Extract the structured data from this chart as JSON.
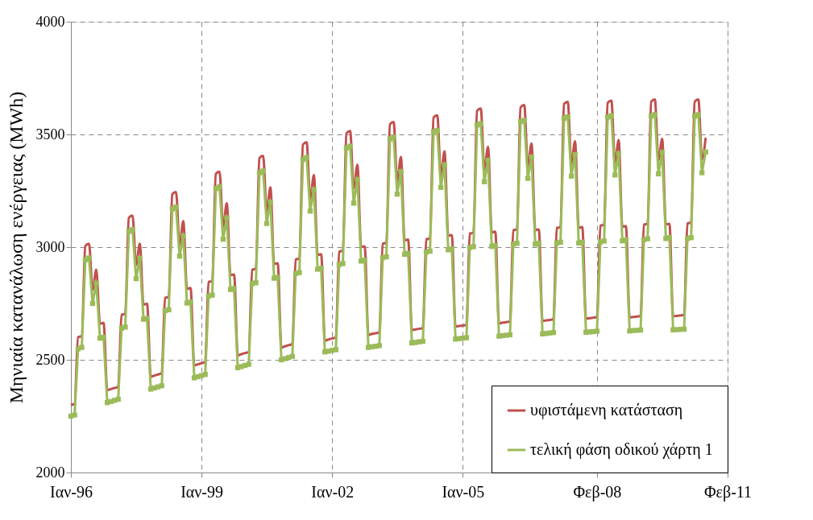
{
  "chart_data": {
    "type": "line",
    "ylabel": "Μηνιαία κατανάλωση ενέργειας  (MWh)",
    "x": [
      "1996-01",
      "1996-02",
      "1996-03",
      "1996-04",
      "1996-05",
      "1996-06",
      "1996-07",
      "1996-08",
      "1996-09",
      "1996-10",
      "1996-11",
      "1996-12",
      "1997-01",
      "1997-02",
      "1997-03",
      "1997-04",
      "1997-05",
      "1997-06",
      "1997-07",
      "1997-08",
      "1997-09",
      "1997-10",
      "1997-11",
      "1997-12",
      "1998-01",
      "1998-02",
      "1998-03",
      "1998-04",
      "1998-05",
      "1998-06",
      "1998-07",
      "1998-08",
      "1998-09",
      "1998-10",
      "1998-11",
      "1998-12",
      "1999-01",
      "1999-02",
      "1999-03",
      "1999-04",
      "1999-05",
      "1999-06",
      "1999-07",
      "1999-08",
      "1999-09",
      "1999-10",
      "1999-11",
      "1999-12",
      "2000-01",
      "2000-02",
      "2000-03",
      "2000-04",
      "2000-05",
      "2000-06",
      "2000-07",
      "2000-08",
      "2000-09",
      "2000-10",
      "2000-11",
      "2000-12",
      "2001-01",
      "2001-02",
      "2001-03",
      "2001-04",
      "2001-05",
      "2001-06",
      "2001-07",
      "2001-08",
      "2001-09",
      "2001-10",
      "2001-11",
      "2001-12",
      "2002-01",
      "2002-02",
      "2002-03",
      "2002-04",
      "2002-05",
      "2002-06",
      "2002-07",
      "2002-08",
      "2002-09",
      "2002-10",
      "2002-11",
      "2002-12",
      "2003-01",
      "2003-02",
      "2003-03",
      "2003-04",
      "2003-05",
      "2003-06",
      "2003-07",
      "2003-08",
      "2003-09",
      "2003-10",
      "2003-11",
      "2003-12",
      "2004-01",
      "2004-02",
      "2004-03",
      "2004-04",
      "2004-05",
      "2004-06",
      "2004-07",
      "2004-08",
      "2004-09",
      "2004-10",
      "2004-11",
      "2004-12",
      "2005-01",
      "2005-02",
      "2005-03",
      "2005-04",
      "2005-05",
      "2005-06",
      "2005-07",
      "2005-08",
      "2005-09",
      "2005-10",
      "2005-11",
      "2005-12",
      "2006-01",
      "2006-02",
      "2006-03",
      "2006-04",
      "2006-05",
      "2006-06",
      "2006-07",
      "2006-08",
      "2006-09",
      "2006-10",
      "2006-11",
      "2006-12",
      "2007-01",
      "2007-02",
      "2007-03",
      "2007-04",
      "2007-05",
      "2007-06",
      "2007-07",
      "2007-08",
      "2007-09",
      "2007-10",
      "2007-11",
      "2007-12",
      "2008-01",
      "2008-02",
      "2008-03",
      "2008-04",
      "2008-05",
      "2008-06",
      "2008-07",
      "2008-08",
      "2008-09",
      "2008-10",
      "2008-11",
      "2008-12",
      "2009-01",
      "2009-02",
      "2009-03",
      "2009-04",
      "2009-05",
      "2009-06",
      "2009-07",
      "2009-08",
      "2009-09",
      "2009-10",
      "2009-11",
      "2009-12",
      "2010-01",
      "2010-02",
      "2010-03",
      "2010-04",
      "2010-05",
      "2010-06",
      "2010-07",
      "2010-08"
    ],
    "series": [
      {
        "name": "υφιστάμενη κατάσταση",
        "color": "#c0504d",
        "marker": "none",
        "values": [
          2300,
          2305,
          2600,
          2605,
          3005,
          3015,
          2810,
          2900,
          2660,
          2664,
          2365,
          2370,
          2375,
          2380,
          2700,
          2704,
          3130,
          3140,
          2920,
          3015,
          2745,
          2749,
          2425,
          2430,
          2435,
          2440,
          2775,
          2779,
          3235,
          3245,
          3010,
          3115,
          2815,
          2819,
          2475,
          2480,
          2485,
          2490,
          2845,
          2849,
          3325,
          3335,
          3090,
          3195,
          2875,
          2879,
          2520,
          2525,
          2530,
          2535,
          2900,
          2904,
          3395,
          3405,
          3160,
          3265,
          2925,
          2929,
          2555,
          2560,
          2565,
          2570,
          2945,
          2949,
          3455,
          3465,
          3215,
          3320,
          2965,
          2969,
          2585,
          2590,
          2595,
          2598,
          2980,
          2984,
          3505,
          3515,
          3260,
          3365,
          3000,
          3004,
          2610,
          2615,
          2618,
          2621,
          3015,
          3019,
          3545,
          3555,
          3290,
          3400,
          3030,
          3034,
          2632,
          2635,
          2638,
          2640,
          3035,
          3039,
          3575,
          3585,
          3320,
          3425,
          3050,
          3054,
          2648,
          2650,
          2652,
          2655,
          3060,
          3064,
          3605,
          3615,
          3345,
          3445,
          3065,
          3069,
          2662,
          2665,
          2667,
          2670,
          3075,
          3079,
          3620,
          3630,
          3360,
          3460,
          3075,
          3079,
          2672,
          2675,
          2677,
          2680,
          3085,
          3089,
          3635,
          3645,
          3370,
          3470,
          3085,
          3089,
          2682,
          2685,
          2687,
          2690,
          3095,
          3099,
          3640,
          3650,
          3375,
          3475,
          3090,
          3094,
          2688,
          2690,
          2692,
          2694,
          3100,
          3104,
          3645,
          3655,
          3385,
          3480,
          3100,
          3104,
          2693,
          2695,
          2697,
          2699,
          3105,
          3109,
          3645,
          3655,
          3390,
          3485
        ]
      },
      {
        "name": "τελική φάση οδικού χάρτη 1",
        "color": "#9bbb59",
        "marker": "square",
        "values": [
          2250,
          2255,
          2549,
          2555,
          2944,
          2952,
          2750,
          2840,
          2596,
          2600,
          2310,
          2315,
          2320,
          2325,
          2640,
          2645,
          3070,
          3078,
          2860,
          2950,
          2680,
          2684,
          2370,
          2375,
          2380,
          2385,
          2718,
          2722,
          3170,
          3178,
          2960,
          3050,
          2752,
          2756,
          2420,
          2425,
          2430,
          2435,
          2783,
          2787,
          3260,
          3268,
          3035,
          3130,
          2812,
          2816,
          2465,
          2470,
          2475,
          2480,
          2838,
          2842,
          3330,
          3338,
          3105,
          3200,
          2862,
          2866,
          2500,
          2505,
          2510,
          2515,
          2883,
          2887,
          3390,
          3398,
          3160,
          3255,
          2902,
          2906,
          2535,
          2538,
          2542,
          2545,
          2923,
          2927,
          3440,
          3448,
          3195,
          3300,
          2938,
          2942,
          2555,
          2558,
          2560,
          2563,
          2953,
          2957,
          3480,
          3488,
          3235,
          3335,
          2968,
          2972,
          2575,
          2577,
          2580,
          2582,
          2978,
          2982,
          3512,
          3518,
          3265,
          3365,
          2988,
          2992,
          2592,
          2594,
          2596,
          2598,
          2998,
          3002,
          3542,
          3548,
          3290,
          3385,
          3003,
          3007,
          2605,
          2607,
          2609,
          2611,
          3013,
          3017,
          3557,
          3563,
          3305,
          3400,
          3013,
          3017,
          2615,
          2617,
          2619,
          2621,
          3018,
          3022,
          3572,
          3578,
          3315,
          3410,
          3018,
          3022,
          2622,
          2624,
          2625,
          2627,
          3023,
          3027,
          3577,
          3583,
          3320,
          3415,
          3028,
          3032,
          2628,
          2630,
          2631,
          2632,
          3033,
          3037,
          3582,
          3588,
          3325,
          3420,
          3038,
          3042,
          2633,
          2634,
          2635,
          2636,
          3038,
          3042,
          3582,
          3588,
          3330,
          3422
        ]
      }
    ],
    "xlim": [
      "1996-01",
      "2011-02"
    ],
    "xticks": [
      {
        "value": "1996-01",
        "label": "Ιαν-96"
      },
      {
        "value": "1999-01",
        "label": "Ιαν-99"
      },
      {
        "value": "2002-01",
        "label": "Ιαν-02"
      },
      {
        "value": "2005-01",
        "label": "Ιαν-05"
      },
      {
        "value": "2008-02",
        "label": "Φεβ-08"
      },
      {
        "value": "2011-02",
        "label": "Φεβ-11"
      }
    ],
    "ylim": [
      2000,
      4000
    ],
    "yticks": [
      2000,
      2500,
      3000,
      3500,
      4000
    ],
    "grid": true,
    "legend": "bottom right",
    "line_style": "solid"
  }
}
